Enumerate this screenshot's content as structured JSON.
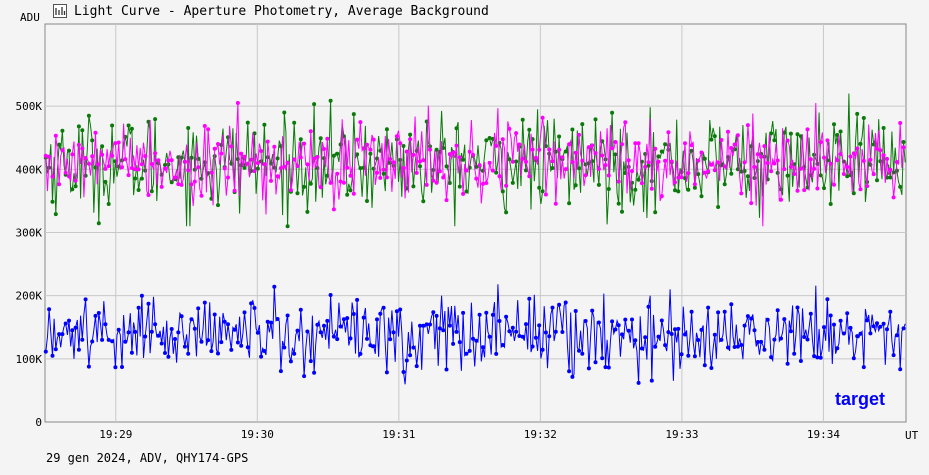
{
  "window": {
    "title": "Light Curve - Aperture Photometry, Average Background"
  },
  "footer": {
    "text": "29 gen 2024, ADV, QHY174-GPS"
  },
  "colors": {
    "comp1": "#0a7a0a",
    "comp2": "#ff00ff",
    "target": "#0000ff",
    "grid": "#c8c8c8",
    "plotbg": "#f4f4f4"
  },
  "chart_data": {
    "type": "line",
    "title": "",
    "xlabel": "UT",
    "ylabel": "ADU",
    "ylim": [
      0,
      630000
    ],
    "xlim": [
      "19:28:30",
      "19:34:35"
    ],
    "x_ticks": [
      "19:29",
      "19:30",
      "19:31",
      "19:32",
      "19:33",
      "19:34"
    ],
    "y_ticks": [
      {
        "value": 0,
        "label": "0"
      },
      {
        "value": 100000,
        "label": "100K"
      },
      {
        "value": 200000,
        "label": "200K"
      },
      {
        "value": 300000,
        "label": "300K"
      },
      {
        "value": 400000,
        "label": "400K"
      },
      {
        "value": 500000,
        "label": "500K"
      }
    ],
    "grid": true,
    "annotation": "target",
    "series_stats": [
      {
        "color": "#0a7a0a",
        "mean": 410000,
        "sd": 38000,
        "min": 310000,
        "max": 520000
      },
      {
        "color": "#ff00ff",
        "mean": 412000,
        "sd": 32000,
        "min": 310000,
        "max": 505000
      },
      {
        "color": "#0000ff",
        "mean": 140000,
        "sd": 30000,
        "min": 50000,
        "max": 222000
      }
    ],
    "points_per_series": 520
  }
}
